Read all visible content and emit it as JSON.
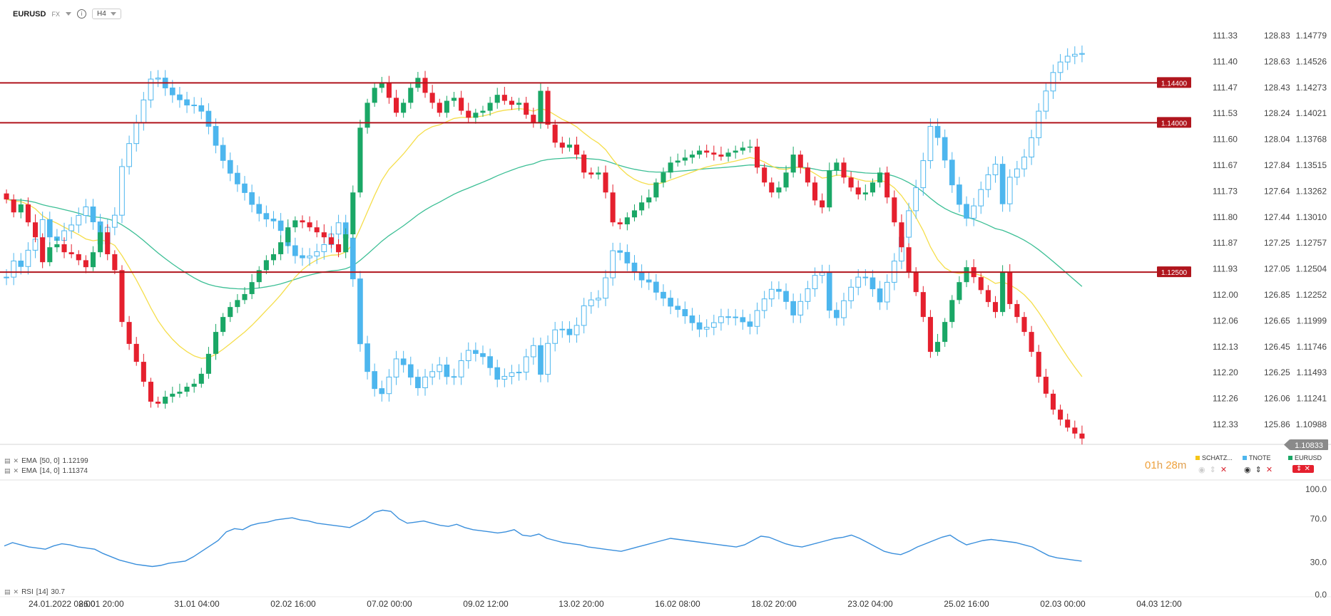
{
  "header": {
    "symbol": "EURUSD",
    "market": "FX",
    "timeframe": "H4"
  },
  "indicators": {
    "ema50_label": "EMA",
    "ema50_params": "[50, 0]",
    "ema50_value": "1.12199",
    "ema14_label": "EMA",
    "ema14_params": "[14, 0]",
    "ema14_value": "1.11374",
    "rsi_label": "RSI",
    "rsi_params": "[14]",
    "rsi_value": "30.7"
  },
  "countdown": {
    "hours": "01",
    "h_unit": "h",
    "minutes": "28",
    "m_unit": "m"
  },
  "compare": [
    {
      "name": "SCHATZ...",
      "color": "#f5c518"
    },
    {
      "name": "TNOTE",
      "color": "#4db6ee"
    },
    {
      "name": "EURUSD",
      "color": "#1aa766"
    }
  ],
  "colors": {
    "up": "#1aa766",
    "down": "#e5202e",
    "ema50": "#3cbf95",
    "ema14": "#f5de4b",
    "rsi": "#3a8fdc",
    "tnote": "#4db6ee",
    "hline": "#b0151d"
  },
  "chart_data": {
    "type": "candlestick",
    "symbol": "EURUSD",
    "timeframe": "H4",
    "axes": {
      "eurusd_ticks": [
        "1.14779",
        "1.14526",
        "1.14273",
        "1.14021",
        "1.13768",
        "1.13515",
        "1.13262",
        "1.13010",
        "1.12757",
        "1.12504",
        "1.12252",
        "1.11999",
        "1.11746",
        "1.11493",
        "1.11241",
        "1.10988"
      ],
      "tnote_ticks": [
        "128.83",
        "128.63",
        "128.43",
        "128.24",
        "128.04",
        "127.84",
        "127.64",
        "127.44",
        "127.25",
        "127.05",
        "126.85",
        "126.65",
        "126.45",
        "126.25",
        "126.06",
        "125.86"
      ],
      "schatz_ticks": [
        "111.33",
        "111.40",
        "111.47",
        "111.53",
        "111.60",
        "111.67",
        "111.73",
        "111.80",
        "111.87",
        "111.93",
        "112.00",
        "112.06",
        "112.13",
        "112.20",
        "112.26",
        "112.33"
      ],
      "time_ticks": [
        "24.01.2022  08:00",
        "26.01  20:00",
        "31.01  04:00",
        "02.02  16:00",
        "07.02  00:00",
        "09.02  12:00",
        "13.02  20:00",
        "16.02  08:00",
        "18.02  20:00",
        "23.02  04:00",
        "25.02  16:00",
        "02.03  00:00",
        "04.03  12:00"
      ],
      "ylim": [
        1.108,
        1.1486
      ]
    },
    "current_price": "1.10833",
    "horizontal_levels": [
      "1.14400",
      "1.14000",
      "1.12500"
    ],
    "eurusd_closes": [
      1.1323,
      1.131,
      1.1318,
      1.13,
      1.1285,
      1.126,
      1.1275,
      1.1278,
      1.127,
      1.1268,
      1.1262,
      1.1255,
      1.127,
      1.129,
      1.1268,
      1.1252,
      1.12,
      1.1178,
      1.116,
      1.114,
      1.112,
      1.1118,
      1.1125,
      1.1128,
      1.113,
      1.1135,
      1.1138,
      1.1148,
      1.1168,
      1.119,
      1.1205,
      1.1215,
      1.1222,
      1.1228,
      1.124,
      1.1252,
      1.1262,
      1.1268,
      1.128,
      1.1295,
      1.1302,
      1.13,
      1.1295,
      1.129,
      1.1285,
      1.1278,
      1.127,
      1.1288,
      1.133,
      1.1395,
      1.142,
      1.1435,
      1.144,
      1.1425,
      1.141,
      1.142,
      1.1435,
      1.1445,
      1.143,
      1.142,
      1.141,
      1.1422,
      1.1425,
      1.1412,
      1.1405,
      1.141,
      1.1412,
      1.142,
      1.1428,
      1.1422,
      1.1418,
      1.142,
      1.1408,
      1.14,
      1.1432,
      1.1398,
      1.138,
      1.1375,
      1.1378,
      1.1368,
      1.135,
      1.1348,
      1.135,
      1.133,
      1.13,
      1.1298,
      1.1305,
      1.1312,
      1.132,
      1.1325,
      1.134,
      1.135,
      1.136,
      1.1362,
      1.1365,
      1.1368,
      1.1372,
      1.137,
      1.1368,
      1.1366,
      1.137,
      1.1372,
      1.1375,
      1.1376,
      1.1355,
      1.134,
      1.133,
      1.1335,
      1.135,
      1.1368,
      1.1355,
      1.134,
      1.1322,
      1.1315,
      1.1352,
      1.136,
      1.1345,
      1.1335,
      1.1328,
      1.133,
      1.134,
      1.135,
      1.1325,
      1.13,
      1.1275,
      1.125,
      1.123,
      1.1205,
      1.117,
      1.118,
      1.12,
      1.1222,
      1.124,
      1.1255,
      1.1245,
      1.1232,
      1.122,
      1.121,
      1.125,
      1.1218,
      1.1205,
      1.119,
      1.117,
      1.1145,
      1.1128,
      1.1112,
      1.1102,
      1.1094,
      1.1088,
      1.1083
    ],
    "rsi": {
      "ylim": [
        0,
        100
      ],
      "ticks": [
        "100.0",
        "70.0",
        "30.0",
        "0.0"
      ],
      "values": [
        45,
        48,
        46,
        44,
        43,
        42,
        45,
        47,
        46,
        44,
        43,
        42,
        38,
        35,
        32,
        30,
        28,
        27,
        26,
        27,
        29,
        30,
        31,
        35,
        40,
        45,
        50,
        58,
        61,
        60,
        64,
        66,
        67,
        69,
        70,
        71,
        69,
        68,
        66,
        65,
        64,
        63,
        62,
        66,
        70,
        76,
        78,
        77,
        70,
        66,
        67,
        68,
        66,
        64,
        63,
        65,
        62,
        60,
        59,
        58,
        57,
        58,
        60,
        55,
        54,
        56,
        52,
        50,
        48,
        47,
        46,
        44,
        43,
        42,
        41,
        40,
        42,
        44,
        46,
        48,
        50,
        52,
        51,
        50,
        49,
        48,
        47,
        46,
        45,
        44,
        46,
        50,
        54,
        53,
        50,
        47,
        45,
        44,
        46,
        48,
        50,
        52,
        53,
        55,
        52,
        48,
        44,
        40,
        38,
        37,
        40,
        44,
        47,
        50,
        53,
        55,
        50,
        46,
        48,
        50,
        51,
        50,
        49,
        48,
        46,
        44,
        40,
        36,
        34,
        33,
        32,
        31
      ]
    }
  }
}
